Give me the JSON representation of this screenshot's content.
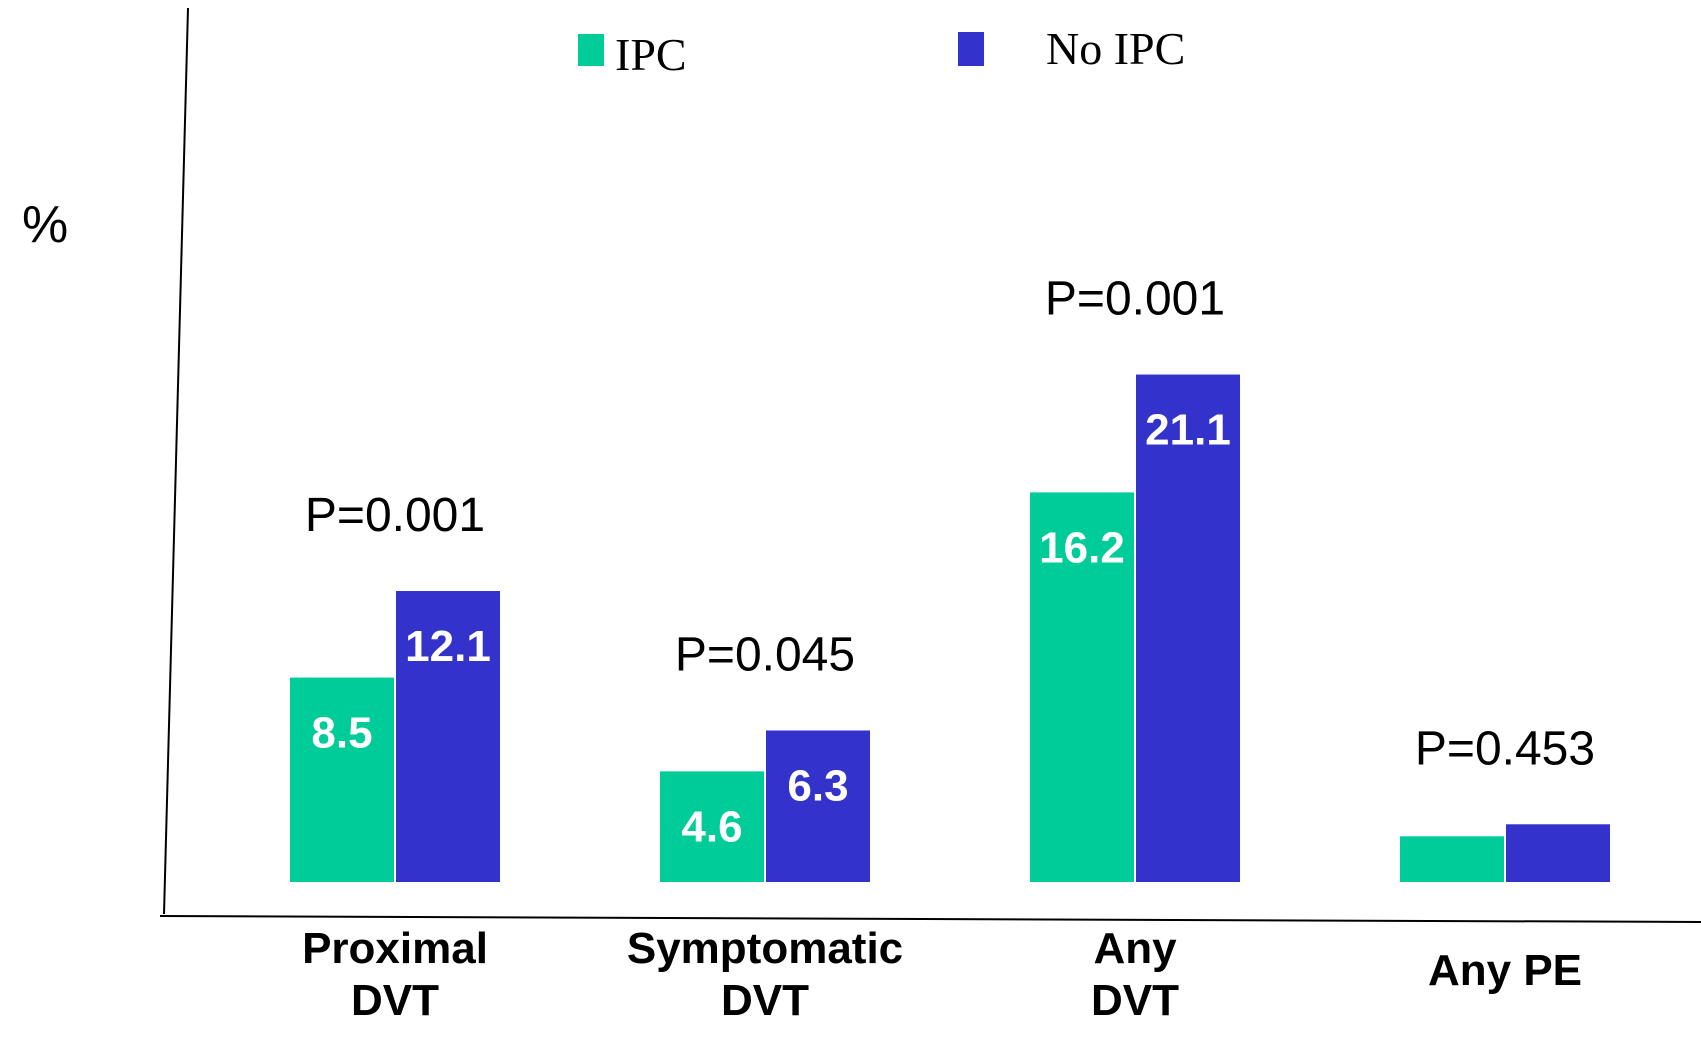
{
  "chart_data": {
    "type": "bar",
    "ylabel": "%",
    "categories": [
      [
        "Proximal",
        "DVT"
      ],
      [
        "Symptomatic",
        "DVT"
      ],
      [
        "Any",
        "DVT"
      ],
      [
        "Any PE"
      ]
    ],
    "series": [
      {
        "name": "IPC",
        "color": "#00CC99",
        "values": [
          8.5,
          4.6,
          16.2,
          1.9
        ],
        "labels": [
          "8.5",
          "4.6",
          "16.2",
          ""
        ]
      },
      {
        "name": "No IPC",
        "color": "#3333CC",
        "values": [
          12.1,
          6.3,
          21.1,
          2.4
        ],
        "labels": [
          "12.1",
          "6.3",
          "21.1",
          ""
        ]
      }
    ],
    "p_values": [
      "P=0.001",
      "P=0.045",
      "P=0.001",
      "P=0.453"
    ],
    "ylim": [
      0,
      23
    ],
    "grid": false,
    "legend": "top-center"
  }
}
